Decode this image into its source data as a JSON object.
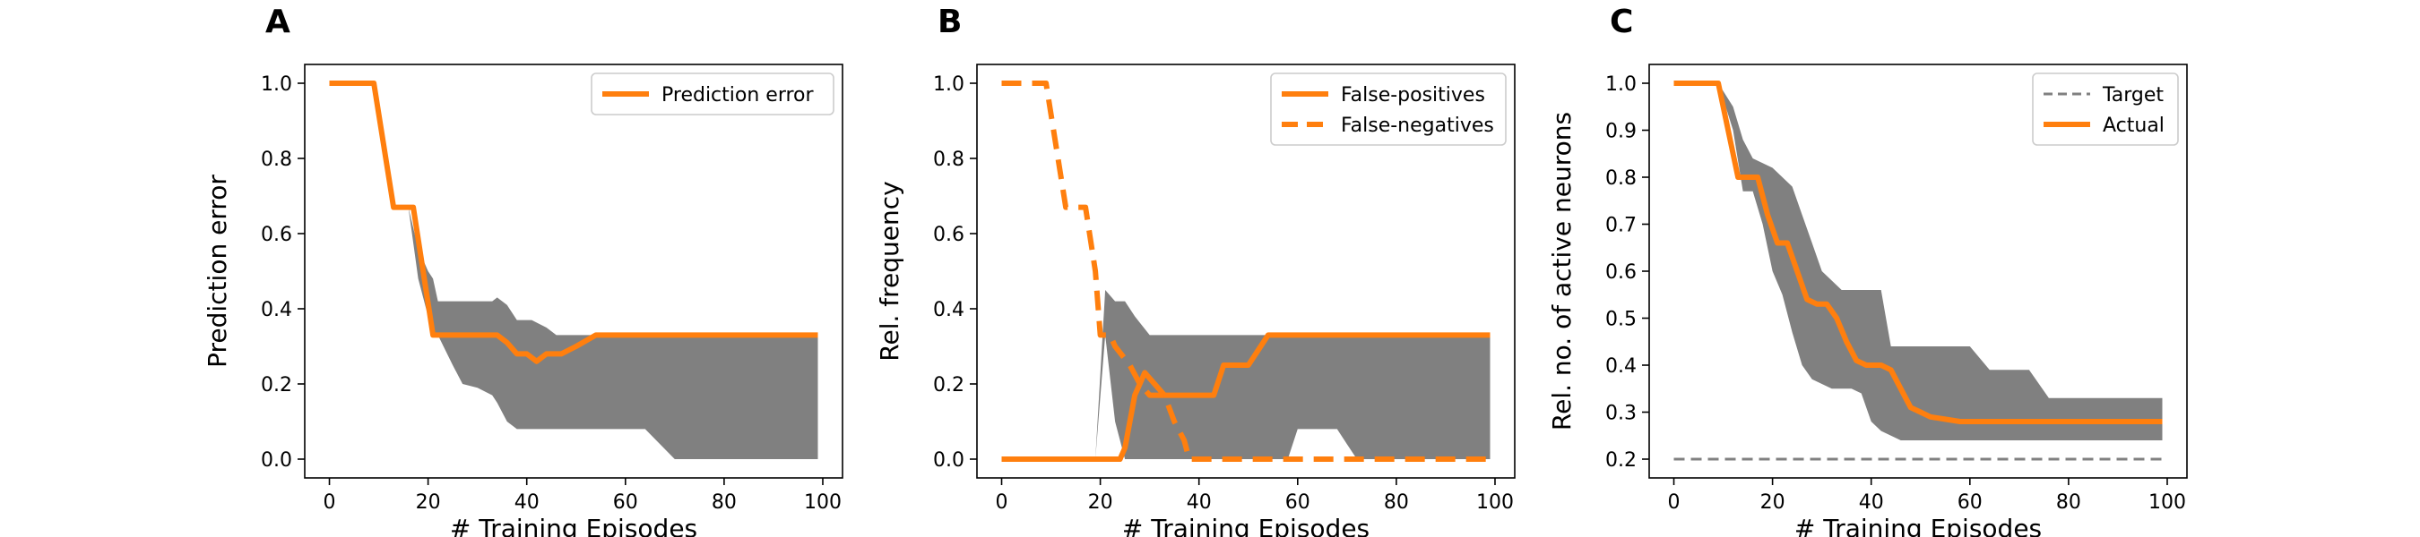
{
  "chart_data": [
    {
      "panel_label": "A",
      "type": "line",
      "xlabel": "# Training Episodes",
      "ylabel": "Prediction error",
      "xlim": [
        -5,
        104
      ],
      "ylim": [
        -0.05,
        1.05
      ],
      "xticks": [
        0,
        20,
        40,
        60,
        80,
        100
      ],
      "yticks": [
        0.0,
        0.2,
        0.4,
        0.6,
        0.8,
        1.0
      ],
      "ytick_labels": [
        "0.0",
        "0.2",
        "0.4",
        "0.6",
        "0.8",
        "1.0"
      ],
      "legend_position": "top-right",
      "band_color": "#808080",
      "band": {
        "x": [
          0,
          9,
          13,
          16,
          18,
          20,
          21,
          22,
          25,
          27,
          30,
          33,
          34,
          36,
          38,
          41,
          44,
          46,
          50,
          53,
          56,
          60,
          64,
          70,
          99
        ],
        "upper": [
          1.0,
          1.0,
          0.67,
          0.67,
          0.56,
          0.5,
          0.48,
          0.42,
          0.42,
          0.42,
          0.42,
          0.42,
          0.43,
          0.41,
          0.37,
          0.37,
          0.35,
          0.33,
          0.33,
          0.33,
          0.33,
          0.33,
          0.33,
          0.33,
          0.33
        ],
        "lower": [
          1.0,
          1.0,
          0.67,
          0.67,
          0.48,
          0.38,
          0.33,
          0.33,
          0.25,
          0.2,
          0.19,
          0.17,
          0.15,
          0.1,
          0.08,
          0.08,
          0.08,
          0.08,
          0.08,
          0.08,
          0.08,
          0.08,
          0.08,
          0.0,
          0.0
        ]
      },
      "series": [
        {
          "name": "Prediction error",
          "style": "solid",
          "color": "#ff7f0e",
          "x": [
            0,
            9,
            13,
            17,
            21,
            25,
            30,
            34,
            36,
            38,
            40,
            42,
            44,
            47,
            50,
            54,
            60,
            70,
            80,
            99
          ],
          "y": [
            1.0,
            1.0,
            0.67,
            0.67,
            0.33,
            0.33,
            0.33,
            0.33,
            0.31,
            0.28,
            0.28,
            0.26,
            0.28,
            0.28,
            0.3,
            0.33,
            0.33,
            0.33,
            0.33,
            0.33
          ]
        }
      ]
    },
    {
      "panel_label": "B",
      "type": "line",
      "xlabel": "# Training Episodes",
      "ylabel": "Rel. frequency",
      "xlim": [
        -5,
        104
      ],
      "ylim": [
        -0.05,
        1.05
      ],
      "xticks": [
        0,
        20,
        40,
        60,
        80,
        100
      ],
      "yticks": [
        0.0,
        0.2,
        0.4,
        0.6,
        0.8,
        1.0
      ],
      "ytick_labels": [
        "0.0",
        "0.2",
        "0.4",
        "0.6",
        "0.8",
        "1.0"
      ],
      "legend_position": "top-right",
      "band_color": "#808080",
      "band": {
        "x": [
          0,
          9,
          13,
          17,
          19,
          21,
          23,
          25,
          27,
          30,
          33,
          36,
          40,
          45,
          50,
          55,
          58,
          60,
          62,
          64,
          68,
          70,
          72,
          80,
          99
        ],
        "upper": [
          0.0,
          0.0,
          0.0,
          0.0,
          0.0,
          0.45,
          0.42,
          0.42,
          0.38,
          0.33,
          0.33,
          0.33,
          0.33,
          0.33,
          0.33,
          0.33,
          0.33,
          0.33,
          0.33,
          0.33,
          0.33,
          0.33,
          0.33,
          0.33,
          0.33
        ],
        "lower": [
          0.0,
          0.0,
          0.0,
          0.0,
          0.0,
          0.33,
          0.1,
          0.0,
          0.0,
          0.0,
          0.0,
          0.0,
          0.0,
          0.0,
          0.0,
          0.0,
          0.0,
          0.08,
          0.08,
          0.08,
          0.08,
          0.04,
          0.0,
          0.0,
          0.0
        ]
      },
      "series": [
        {
          "name": "False-positives",
          "style": "solid",
          "color": "#ff7f0e",
          "x": [
            0,
            24,
            25,
            27,
            29,
            31,
            33,
            36,
            38,
            41,
            43,
            45,
            47,
            50,
            52,
            54,
            60,
            70,
            80,
            99
          ],
          "y": [
            0.0,
            0.0,
            0.03,
            0.17,
            0.23,
            0.2,
            0.17,
            0.17,
            0.17,
            0.17,
            0.17,
            0.25,
            0.25,
            0.25,
            0.29,
            0.33,
            0.33,
            0.33,
            0.33,
            0.33
          ]
        },
        {
          "name": "False-negatives",
          "style": "dashed",
          "color": "#ff7f0e",
          "x": [
            0,
            9,
            13,
            17,
            19,
            20,
            22,
            23,
            26,
            28,
            30,
            33,
            35,
            37,
            38,
            40,
            50,
            60,
            80,
            99
          ],
          "y": [
            1.0,
            1.0,
            0.67,
            0.67,
            0.5,
            0.33,
            0.33,
            0.3,
            0.25,
            0.2,
            0.17,
            0.17,
            0.1,
            0.05,
            0.0,
            0.0,
            0.0,
            0.0,
            0.0,
            0.0
          ]
        }
      ]
    },
    {
      "panel_label": "C",
      "type": "line",
      "xlabel": "# Training Episodes",
      "ylabel": "Rel. no. of active neurons",
      "xlim": [
        -5,
        104
      ],
      "ylim": [
        0.16,
        1.04
      ],
      "xticks": [
        0,
        20,
        40,
        60,
        80,
        100
      ],
      "yticks": [
        0.2,
        0.3,
        0.4,
        0.5,
        0.6,
        0.7,
        0.8,
        0.9,
        1.0
      ],
      "ytick_labels": [
        "0.2",
        "0.3",
        "0.4",
        "0.5",
        "0.6",
        "0.7",
        "0.8",
        "0.9",
        "1.0"
      ],
      "legend_position": "top-right",
      "band_color": "#808080",
      "band": {
        "x": [
          0,
          9,
          12,
          14,
          16,
          18,
          20,
          22,
          24,
          26,
          28,
          30,
          32,
          34,
          36,
          38,
          40,
          42,
          44,
          46,
          48,
          50,
          55,
          60,
          64,
          66,
          70,
          72,
          76,
          80,
          90,
          99
        ],
        "upper": [
          1.0,
          1.0,
          0.95,
          0.88,
          0.84,
          0.83,
          0.82,
          0.8,
          0.78,
          0.72,
          0.66,
          0.6,
          0.58,
          0.56,
          0.56,
          0.56,
          0.56,
          0.56,
          0.44,
          0.44,
          0.44,
          0.44,
          0.44,
          0.44,
          0.39,
          0.39,
          0.39,
          0.39,
          0.33,
          0.33,
          0.33,
          0.33
        ],
        "lower": [
          1.0,
          1.0,
          0.9,
          0.77,
          0.77,
          0.7,
          0.6,
          0.55,
          0.47,
          0.4,
          0.37,
          0.36,
          0.35,
          0.35,
          0.35,
          0.34,
          0.28,
          0.26,
          0.25,
          0.24,
          0.24,
          0.24,
          0.24,
          0.24,
          0.24,
          0.24,
          0.24,
          0.24,
          0.24,
          0.24,
          0.24,
          0.24
        ]
      },
      "series": [
        {
          "name": "Target",
          "style": "dashed",
          "color": "#808080",
          "x": [
            0,
            99
          ],
          "y": [
            0.2,
            0.2
          ]
        },
        {
          "name": "Actual",
          "style": "solid",
          "color": "#ff7f0e",
          "x": [
            0,
            9,
            13,
            15,
            17,
            19,
            21,
            23,
            25,
            27,
            29,
            31,
            33,
            35,
            37,
            39,
            42,
            44,
            46,
            48,
            50,
            52,
            55,
            58,
            60,
            70,
            80,
            90,
            99
          ],
          "y": [
            1.0,
            1.0,
            0.8,
            0.8,
            0.8,
            0.72,
            0.66,
            0.66,
            0.6,
            0.54,
            0.53,
            0.53,
            0.5,
            0.45,
            0.41,
            0.4,
            0.4,
            0.39,
            0.35,
            0.31,
            0.3,
            0.29,
            0.285,
            0.28,
            0.28,
            0.28,
            0.28,
            0.28,
            0.28
          ]
        }
      ]
    }
  ]
}
